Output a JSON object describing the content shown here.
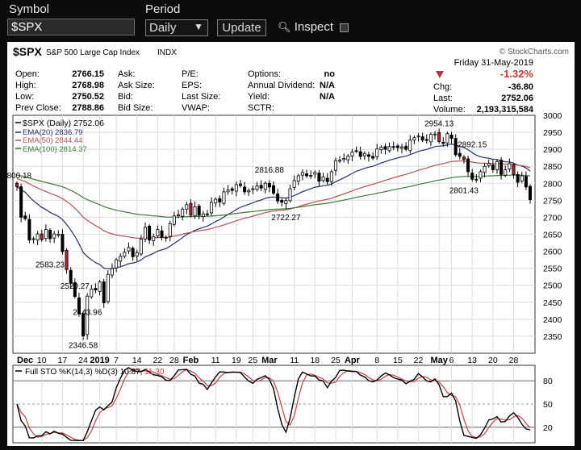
{
  "toolbar": {
    "symbol_label": "Symbol",
    "symbol_value": "$SPX",
    "period_label": "Period",
    "period_value": "Daily",
    "update_label": "Update",
    "inspect_label": "Inspect"
  },
  "header": {
    "symbol": "$SPX",
    "name": "S&P 500 Large Cap Index",
    "exchange": "INDX",
    "brand": "© StockCharts.com",
    "date": "Friday  31-May-2019",
    "open_label": "Open:",
    "open": "2766.15",
    "high_label": "High:",
    "high": "2768.98",
    "low_label": "Low:",
    "low": "2750.52",
    "prev_label": "Prev Close:",
    "prev": "2788.86",
    "ask_label": "Ask:",
    "asksize_label": "Ask Size:",
    "bid_label": "Bid:",
    "bidsize_label": "Bid Size:",
    "pe_label": "P/E:",
    "eps_label": "EPS:",
    "lastsize_label": "Last Size:",
    "vwap_label": "VWAP:",
    "options_label": "Options:",
    "options": "no",
    "div_label": "Annual Dividend:",
    "div": "N/A",
    "yield_label": "Yield:",
    "yield": "N/A",
    "sctr_label": "SCTR:",
    "pct_change": "-1.32%",
    "chg_label": "Chg:",
    "chg": "-36.80",
    "last_label": "Last:",
    "last": "2752.06",
    "volume_label": "Volume:",
    "volume": "2,193,315,584"
  },
  "legend": {
    "price": "$SPX (Daily) 2752.06",
    "ema20": "EMA(20) 2836.79",
    "ema50": "EMA(50) 2844.44",
    "ema100": "EMA(100) 2814.37",
    "sto_prefix": "Full STO %K(14,3) %D(3) 10.87,",
    "sto_d": "11.30"
  },
  "colors": {
    "up": "#ffffff",
    "down": "#000000",
    "red_candle": "#b22222",
    "ema20": "#25306e",
    "ema50": "#b85050",
    "ema100": "#3a7a3a",
    "sto_k": "#000000",
    "sto_d": "#c84040",
    "grid": "#dcdcdc",
    "neg": "#c0392b"
  },
  "chart_data": [
    {
      "type": "candlestick",
      "title": "$SPX S&P 500 Large Cap Index INDX",
      "ylim": [
        2300,
        3000
      ],
      "yticks": [
        2350,
        2400,
        2450,
        2500,
        2550,
        2600,
        2650,
        2700,
        2750,
        2800,
        2850,
        2900,
        2950,
        3000
      ],
      "x_labels": [
        "Dec",
        "10",
        "17",
        "24",
        "2019",
        "7",
        "14",
        "22",
        "28",
        "Feb",
        "11",
        "19",
        "25",
        "Mar",
        "11",
        "18",
        "25",
        "Apr",
        "8",
        "15",
        "22",
        "May",
        "6",
        "13",
        "20",
        "28"
      ],
      "x_label_positions": [
        0,
        6,
        11,
        16,
        20,
        24,
        29,
        34,
        38,
        42,
        48,
        53,
        57,
        61,
        67,
        72,
        77,
        81,
        87,
        92,
        97,
        102,
        105,
        110,
        115,
        120
      ],
      "grid": true,
      "annotations": [
        {
          "label": "2800.18",
          "index": 0,
          "value": 2800.18
        },
        {
          "label": "2583.23",
          "index": 8,
          "value": 2583.23
        },
        {
          "label": "2520.27",
          "index": 14,
          "value": 2520.27
        },
        {
          "label": "2443.96",
          "index": 17,
          "value": 2443.96
        },
        {
          "label": "2346.58",
          "index": 16,
          "value": 2346.58
        },
        {
          "label": "2816.88",
          "index": 61,
          "value": 2816.88
        },
        {
          "label": "2722.27",
          "index": 65,
          "value": 2722.27
        },
        {
          "label": "2954.13",
          "index": 102,
          "value": 2954.13
        },
        {
          "label": "2892.15",
          "index": 110,
          "value": 2892.15
        },
        {
          "label": "2801.43",
          "index": 108,
          "value": 2801.43
        }
      ],
      "close": [
        2790,
        2700,
        2696,
        2633,
        2637,
        2651,
        2634,
        2664,
        2637,
        2651,
        2650,
        2599,
        2546,
        2506,
        2467,
        2416,
        2351,
        2468,
        2489,
        2486,
        2510,
        2448,
        2532,
        2549,
        2575,
        2585,
        2597,
        2611,
        2584,
        2596,
        2636,
        2670,
        2633,
        2643,
        2664,
        2641,
        2640,
        2681,
        2704,
        2707,
        2724,
        2737,
        2706,
        2731,
        2706,
        2710,
        2709,
        2744,
        2753,
        2745,
        2775,
        2780,
        2779,
        2796,
        2793,
        2775,
        2779,
        2784,
        2792,
        2786,
        2800,
        2789,
        2771,
        2748,
        2744,
        2749,
        2784,
        2808,
        2822,
        2832,
        2822,
        2823,
        2832,
        2806,
        2819,
        2805,
        2834,
        2867,
        2868,
        2873,
        2880,
        2892,
        2895,
        2879,
        2888,
        2879,
        2874,
        2901,
        2906,
        2900,
        2908,
        2906,
        2905,
        2907,
        2900,
        2927,
        2934,
        2939,
        2927,
        2926,
        2944,
        2945,
        2923,
        2917,
        2946,
        2932,
        2884,
        2879,
        2870,
        2834,
        2812,
        2811,
        2834,
        2850,
        2858,
        2840,
        2864,
        2826,
        2840,
        2858,
        2826,
        2803,
        2822,
        2789,
        2752
      ],
      "ema20_end": 2836.79,
      "ema50_end": 2844.44,
      "ema100_end": 2814.37
    },
    {
      "type": "line",
      "title": "Full STO %K(14,3) %D(3)",
      "ylim": [
        0,
        100
      ],
      "yticks": [
        20,
        50,
        80
      ],
      "series": [
        {
          "name": "%K(14,3)",
          "end_value": 10.87
        },
        {
          "name": "%D(3)",
          "end_value": 11.3
        }
      ]
    }
  ]
}
